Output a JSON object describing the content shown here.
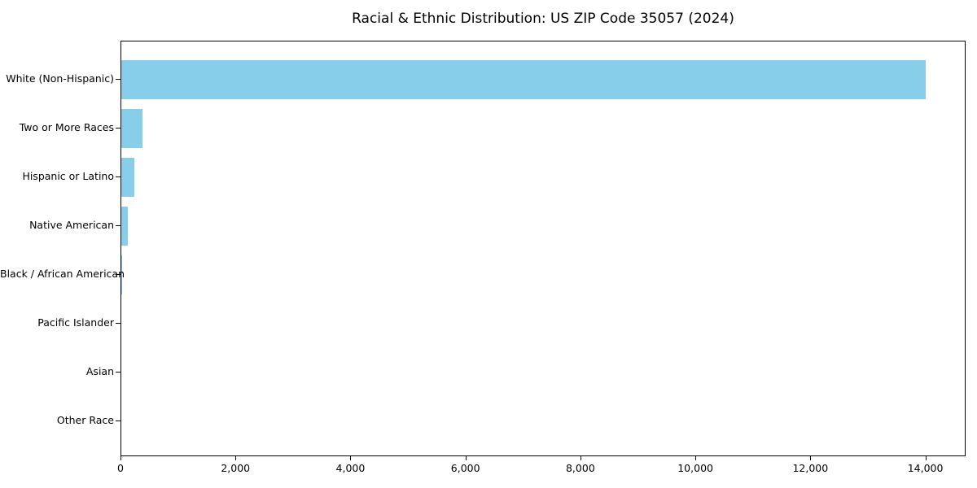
{
  "title": "Racial & Ethnic Distribution: US ZIP Code 35057 (2024)",
  "chart_data": {
    "type": "bar",
    "orientation": "horizontal",
    "title": "Racial & Ethnic Distribution: US ZIP Code 35057 (2024)",
    "xlabel": "",
    "ylabel": "",
    "categories": [
      "White (Non-Hispanic)",
      "Two or More Races",
      "Hispanic or Latino",
      "Native American",
      "Black / African American",
      "Pacific Islander",
      "Asian",
      "Other Race"
    ],
    "values": [
      13990,
      370,
      225,
      115,
      20,
      0,
      0,
      0
    ],
    "xlim": [
      0,
      14700
    ],
    "xticks": {
      "values": [
        0,
        2000,
        4000,
        6000,
        8000,
        10000,
        12000,
        14000
      ],
      "labels": [
        "0",
        "2,000",
        "4,000",
        "6,000",
        "8,000",
        "10,000",
        "12,000",
        "14,000"
      ]
    },
    "grid": false,
    "legend_position": "none",
    "bar_color": "#87CEEB",
    "axis_color": "#000000",
    "background_color": "#FFFFFF"
  }
}
